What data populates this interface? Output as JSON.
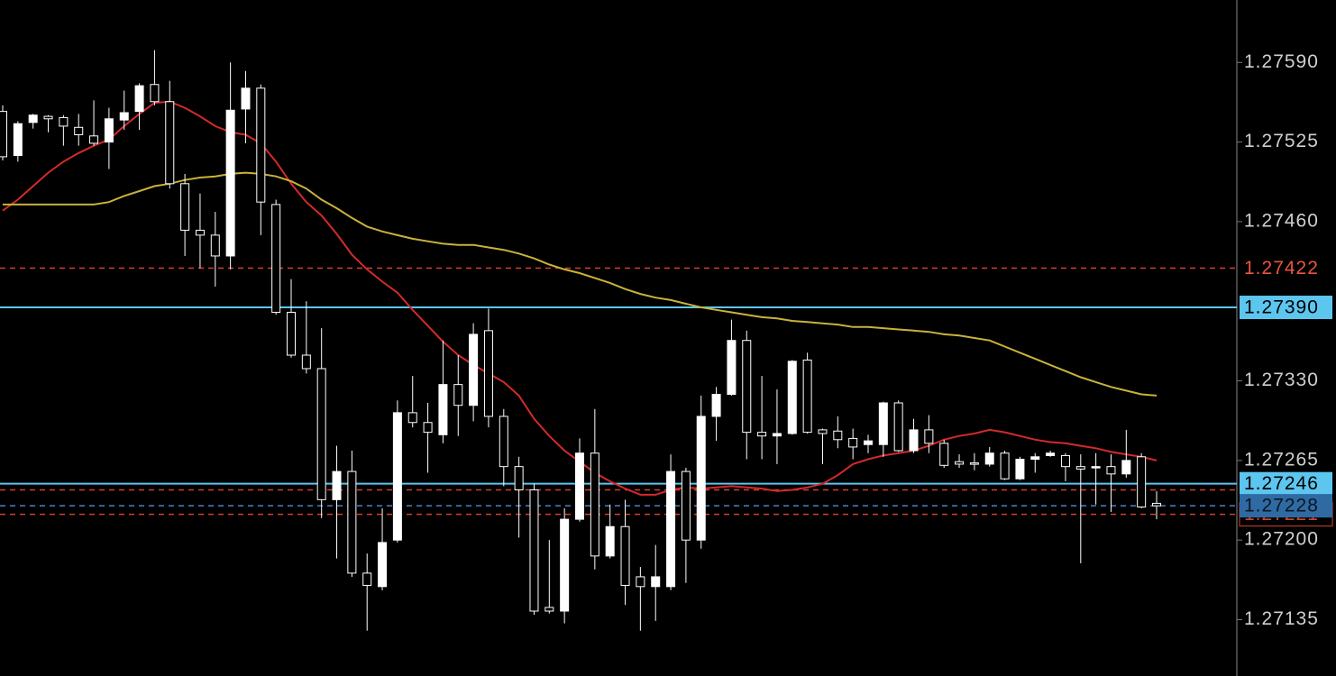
{
  "chart_data": {
    "type": "candlestick",
    "background": "#000000",
    "ylim": [
      1.27089,
      1.27641
    ],
    "yticks": [
      {
        "value": 1.2759,
        "label": "1.27590"
      },
      1.27525,
      {
        "value": 1.2746,
        "label": "1.27460"
      },
      {
        "value": 1.2733,
        "label": "1.27330"
      },
      1.27265,
      {
        "value": 1.272,
        "label": "1.27200"
      },
      1.27135
    ],
    "candles": {
      "up_color": "#ffffff",
      "down_color": "#000000",
      "outline": "#ffffff",
      "open": [
        1.2755,
        1.27514,
        1.27541,
        1.27546,
        1.27545,
        1.27537,
        1.2753,
        1.27525,
        1.27543,
        1.2755,
        1.27572,
        1.27558,
        1.27491,
        1.27453,
        1.27449,
        1.27432,
        1.27552,
        1.27569,
        1.27474,
        1.27386,
        1.27351,
        1.2734,
        1.27233,
        1.27256,
        1.27173,
        1.27162,
        1.272,
        1.27304,
        1.27296,
        1.27286,
        1.27327,
        1.2731,
        1.27371,
        1.27301,
        1.2726,
        1.27241,
        1.27145,
        1.27142,
        1.27217,
        1.27271,
        1.27187,
        1.27211,
        1.2717,
        1.27162,
        1.27162,
        1.27256,
        1.272,
        1.27301,
        1.27319,
        1.27363,
        1.27288,
        1.27285,
        1.27287,
        1.27347,
        1.2729,
        1.27289,
        1.27283,
        1.27278,
        1.27278,
        1.27312,
        1.27273,
        1.2729,
        1.27279,
        1.27264,
        1.27263,
        1.27262,
        1.27271,
        1.2725,
        1.27266,
        1.27269,
        1.27269,
        1.2726,
        1.27259,
        1.2726,
        1.27254,
        1.27268,
        1.2723
      ],
      "high": [
        1.27555,
        1.27542,
        1.27548,
        1.27547,
        1.27547,
        1.27548,
        1.27559,
        1.27553,
        1.27567,
        1.27573,
        1.276,
        1.27575,
        1.27499,
        1.27483,
        1.27468,
        1.2759,
        1.27583,
        1.27572,
        1.27478,
        1.27413,
        1.27395,
        1.27373,
        1.27277,
        1.27273,
        1.27189,
        1.27226,
        1.27314,
        1.27334,
        1.27312,
        1.27363,
        1.27351,
        1.27377,
        1.27389,
        1.27307,
        1.27268,
        1.27246,
        1.272,
        1.27226,
        1.27283,
        1.27307,
        1.27229,
        1.27233,
        1.27178,
        1.27196,
        1.2727,
        1.27259,
        1.27318,
        1.27325,
        1.2738,
        1.27371,
        1.27334,
        1.27323,
        1.27347,
        1.27353,
        1.27291,
        1.27301,
        1.27291,
        1.27286,
        1.27313,
        1.27314,
        1.27299,
        1.27302,
        1.27282,
        1.2727,
        1.27271,
        1.27276,
        1.27273,
        1.27268,
        1.27271,
        1.27273,
        1.27271,
        1.2727,
        1.27271,
        1.2727,
        1.2729,
        1.27271,
        1.2724
      ],
      "low": [
        1.2751,
        1.27509,
        1.27536,
        1.27533,
        1.27522,
        1.27522,
        1.27522,
        1.27503,
        1.27535,
        1.27535,
        1.27555,
        1.27487,
        1.27432,
        1.27422,
        1.27407,
        1.27421,
        1.27524,
        1.27449,
        1.27384,
        1.27349,
        1.27336,
        1.27218,
        1.27185,
        1.2717,
        1.27126,
        1.27159,
        1.27198,
        1.27292,
        1.27255,
        1.27279,
        1.27285,
        1.27297,
        1.27292,
        1.27244,
        1.27202,
        1.27139,
        1.2714,
        1.27132,
        1.27215,
        1.27176,
        1.27185,
        1.27147,
        1.27126,
        1.27134,
        1.27159,
        1.27165,
        1.27193,
        1.27281,
        1.27318,
        1.27266,
        1.27266,
        1.27262,
        1.27286,
        1.27287,
        1.27262,
        1.27275,
        1.27266,
        1.27271,
        1.27268,
        1.27272,
        1.27271,
        1.27271,
        1.27259,
        1.27259,
        1.27257,
        1.2726,
        1.27249,
        1.27249,
        1.27255,
        1.27268,
        1.27248,
        1.27181,
        1.27229,
        1.27223,
        1.27251,
        1.27226,
        1.27217
      ],
      "close": [
        1.27513,
        1.2754,
        1.27547,
        1.27544,
        1.27538,
        1.27531,
        1.27524,
        1.27544,
        1.27549,
        1.27571,
        1.27558,
        1.27491,
        1.27453,
        1.27449,
        1.27432,
        1.27551,
        1.27569,
        1.27476,
        1.27386,
        1.27351,
        1.2734,
        1.27233,
        1.27256,
        1.27173,
        1.27163,
        1.27198,
        1.27304,
        1.27296,
        1.27288,
        1.27327,
        1.2731,
        1.27368,
        1.27301,
        1.2726,
        1.27241,
        1.27142,
        1.27142,
        1.27217,
        1.27271,
        1.27187,
        1.27211,
        1.27163,
        1.27162,
        1.2717,
        1.27256,
        1.272,
        1.27301,
        1.27319,
        1.27363,
        1.27288,
        1.27285,
        1.27287,
        1.27346,
        1.27288,
        1.27287,
        1.27282,
        1.27276,
        1.27281,
        1.27312,
        1.27273,
        1.2729,
        1.27279,
        1.27261,
        1.27262,
        1.27262,
        1.27271,
        1.2725,
        1.27266,
        1.27268,
        1.27271,
        1.2726,
        1.27258,
        1.2726,
        1.27254,
        1.27265,
        1.27227,
        1.27228
      ]
    },
    "lines": [
      {
        "color": "#d42a2a",
        "values": [
          1.27469,
          1.27478,
          1.27489,
          1.275,
          1.27509,
          1.27516,
          1.27522,
          1.27527,
          1.27538,
          1.27548,
          1.27557,
          1.27558,
          1.27553,
          1.27546,
          1.27538,
          1.27533,
          1.27531,
          1.27524,
          1.27509,
          1.27491,
          1.27476,
          1.27465,
          1.2745,
          1.27433,
          1.27421,
          1.27411,
          1.27402,
          1.27388,
          1.27375,
          1.27362,
          1.27351,
          1.27343,
          1.27336,
          1.27329,
          1.27318,
          1.27299,
          1.27285,
          1.27273,
          1.27264,
          1.27255,
          1.27248,
          1.27242,
          1.27237,
          1.27237,
          1.27241,
          1.27243,
          1.27242,
          1.27243,
          1.27244,
          1.27243,
          1.27242,
          1.2724,
          1.27241,
          1.27243,
          1.27246,
          1.27253,
          1.27262,
          1.27266,
          1.27269,
          1.27271,
          1.27273,
          1.27277,
          1.27282,
          1.27285,
          1.27287,
          1.2729,
          1.27288,
          1.27285,
          1.27282,
          1.2728,
          1.27279,
          1.27277,
          1.27275,
          1.27272,
          1.2727,
          1.27268,
          1.27265
        ]
      },
      {
        "color": "#c9b23a",
        "values": [
          1.27474,
          1.27474,
          1.27474,
          1.27474,
          1.27474,
          1.27474,
          1.27474,
          1.27476,
          1.27481,
          1.27485,
          1.27489,
          1.27491,
          1.27494,
          1.27496,
          1.27497,
          1.27499,
          1.275,
          1.27499,
          1.27497,
          1.27493,
          1.27487,
          1.27478,
          1.27471,
          1.27463,
          1.27456,
          1.27452,
          1.27449,
          1.27446,
          1.27444,
          1.27442,
          1.27441,
          1.27441,
          1.27439,
          1.27437,
          1.27434,
          1.2743,
          1.27425,
          1.27421,
          1.27418,
          1.27414,
          1.2741,
          1.27405,
          1.27401,
          1.27398,
          1.27396,
          1.27393,
          1.2739,
          1.27388,
          1.27386,
          1.27384,
          1.27382,
          1.27381,
          1.27379,
          1.27378,
          1.27377,
          1.27376,
          1.27374,
          1.27374,
          1.27373,
          1.27372,
          1.27371,
          1.2737,
          1.27368,
          1.27367,
          1.27365,
          1.27363,
          1.27358,
          1.27353,
          1.27348,
          1.27343,
          1.27338,
          1.27333,
          1.27329,
          1.27325,
          1.27322,
          1.27319,
          1.27318
        ]
      }
    ],
    "levels": [
      {
        "value": 1.27422,
        "color": "#d4402c",
        "dashed": true,
        "tag": {
          "fill": "none",
          "stroke": "none",
          "text": "#e8553e"
        }
      },
      {
        "value": 1.2739,
        "label": "1.27390",
        "color": "#5cc6ef",
        "dashed": false,
        "tag": {
          "fill": "#5cc6ef",
          "stroke": "none",
          "text": "#000000"
        }
      },
      {
        "value": 1.27246,
        "color": "#5cc6ef",
        "dashed": false,
        "tag": {
          "fill": "#5cc6ef",
          "stroke": "none",
          "text": "#000000"
        }
      },
      {
        "value": 1.27241,
        "color": "#d4402c",
        "dashed": true
      },
      {
        "value": 1.27221,
        "color": "#d4402c",
        "dashed": true,
        "tag": {
          "fill": "#000000",
          "stroke": "#d4402c",
          "text": "#d4402c"
        }
      },
      {
        "value": 1.27228,
        "color": "#4a82c4",
        "dashed": true,
        "tag": {
          "fill": "#2f6aa3",
          "stroke": "none",
          "text": "#0b1622"
        }
      }
    ]
  }
}
